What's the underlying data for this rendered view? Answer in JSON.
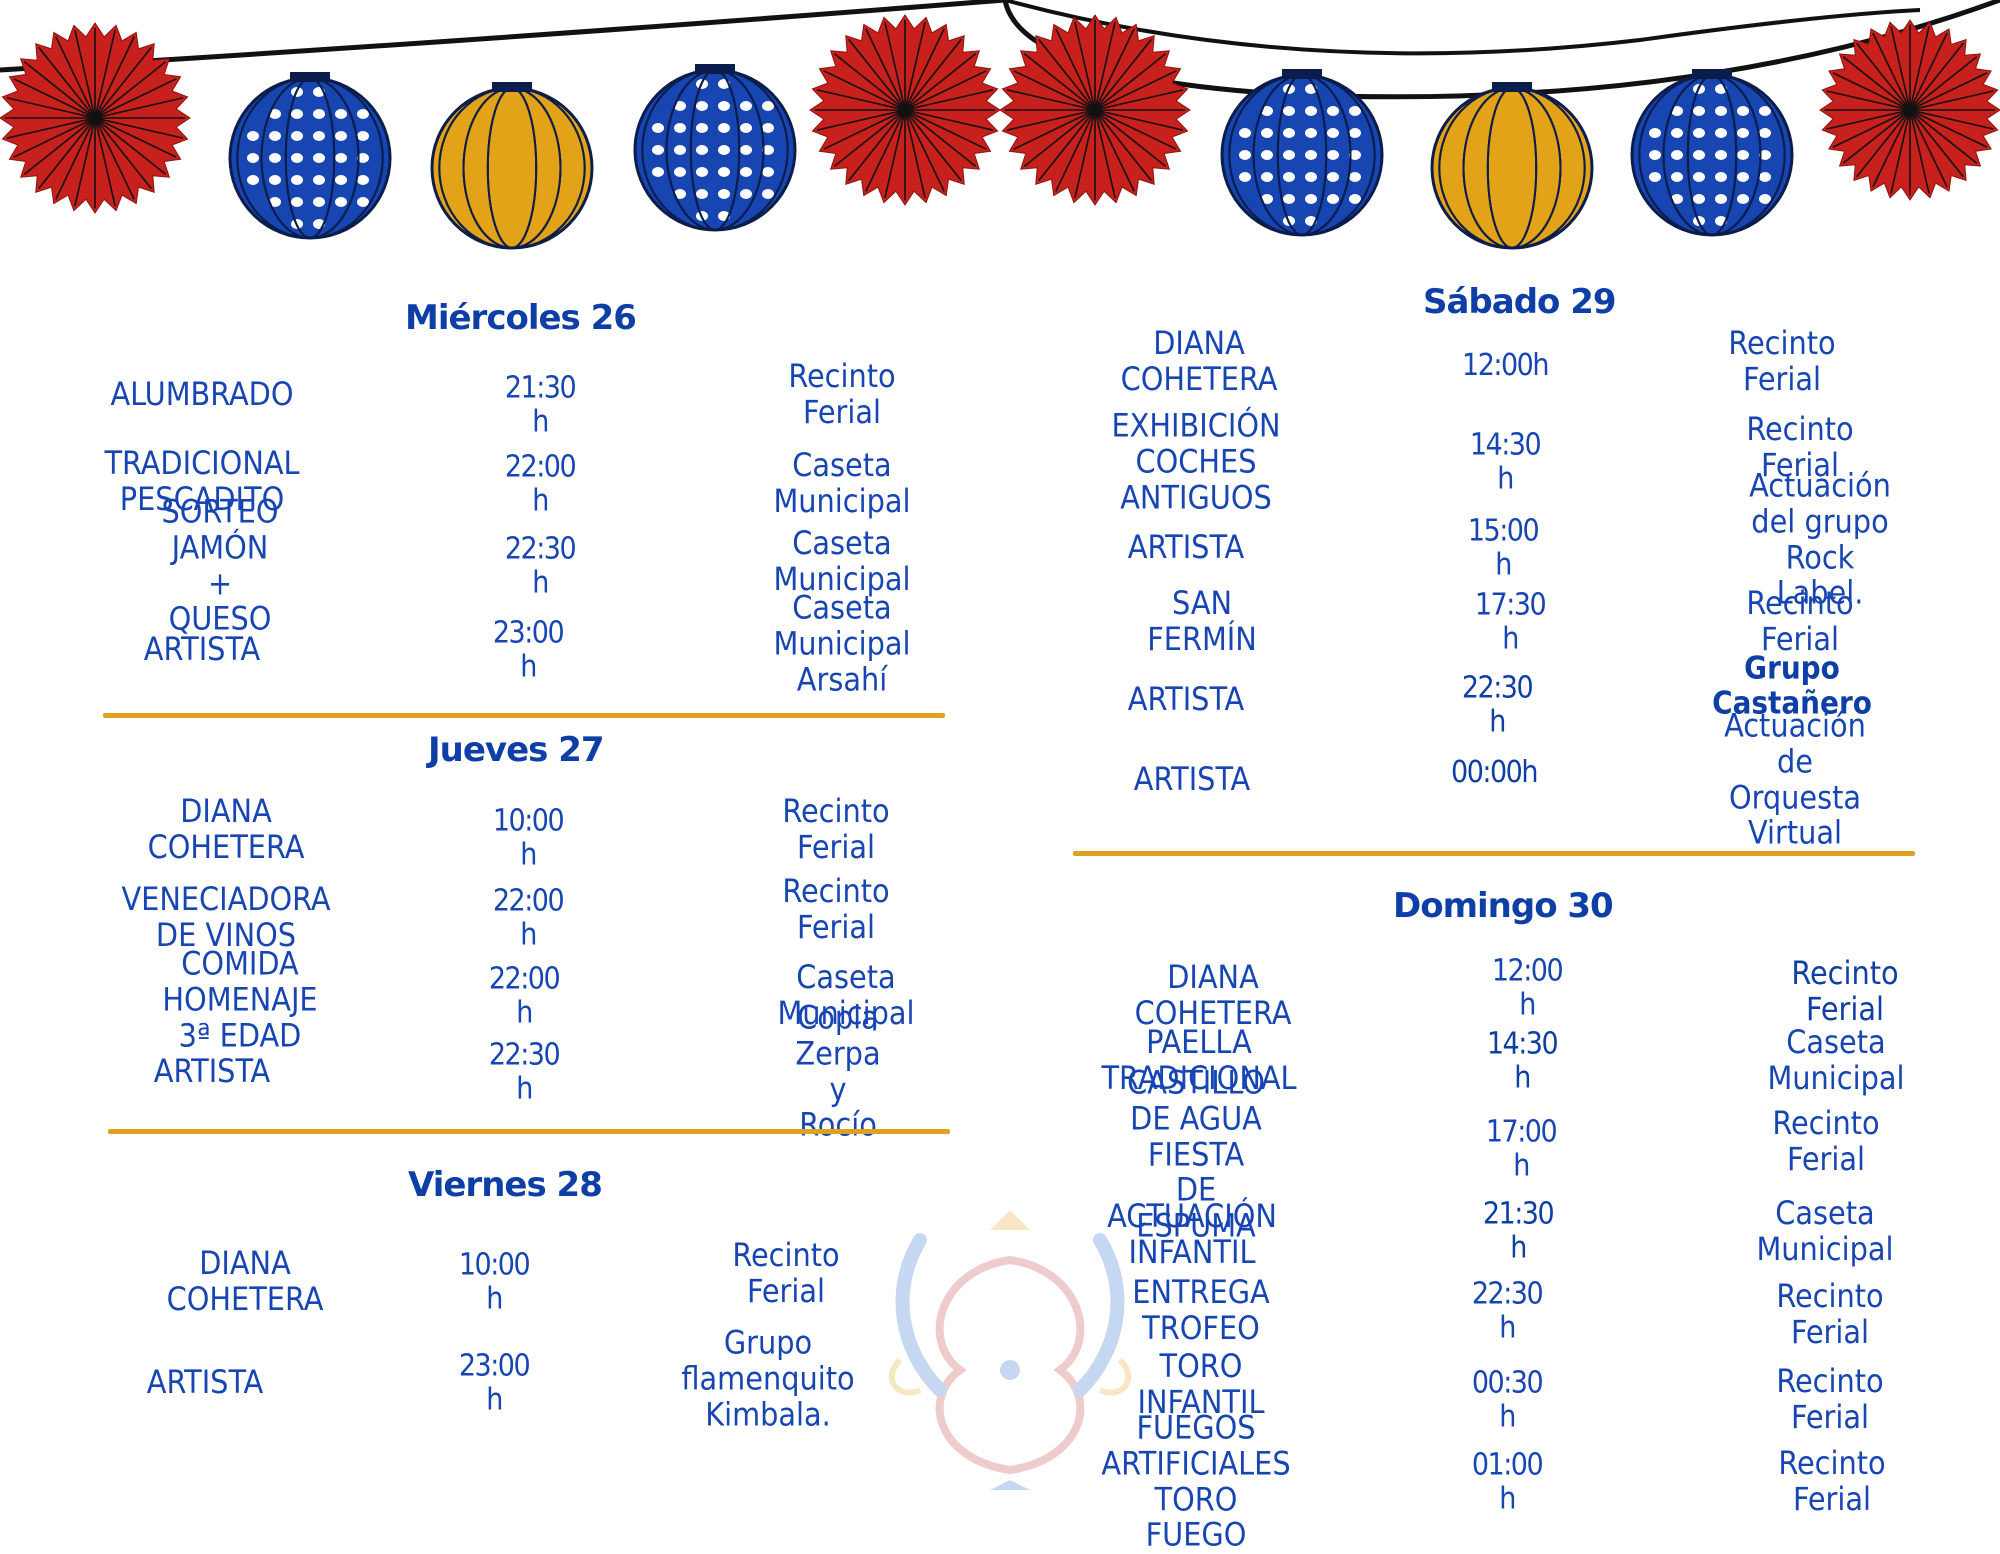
{
  "schedule": {
    "miercoles": {
      "title": "Miércoles 26",
      "events": [
        {
          "activity": "ALUMBRADO",
          "time": "21:30 h",
          "place": "Recinto Ferial"
        },
        {
          "activity": "TRADICIONAL\nPESCADITO",
          "time": "22:00 h",
          "place": "Caseta Municipal"
        },
        {
          "activity": "SORTEO JAMÓN + QUESO",
          "time": "22:30 h",
          "place": "Caseta Municipal"
        },
        {
          "activity": "ARTISTA",
          "time": "23:00 h",
          "place": "Caseta Municipal\nArsahí"
        }
      ]
    },
    "jueves": {
      "title": "Jueves 27",
      "events": [
        {
          "activity": "DIANA COHETERA",
          "time": "10:00 h",
          "place": "Recinto Ferial"
        },
        {
          "activity": "VENECIADORA DE VINOS",
          "time": "22:00 h",
          "place": "Recinto Ferial"
        },
        {
          "activity": "COMIDA HOMENAJE 3ª EDAD",
          "time": "22:00 h",
          "place": "Caseta Municipal"
        },
        {
          "activity": "ARTISTA",
          "time": "22:30 h",
          "place": "Copla Zerpa y Rocío"
        }
      ]
    },
    "viernes": {
      "title": "Viernes  28",
      "events": [
        {
          "activity": "DIANA COHETERA",
          "time": "10:00 h",
          "place": "Recinto Ferial"
        },
        {
          "activity": "ARTISTA",
          "time": "23:00 h",
          "place": "Grupo flamenquito Kimbala."
        }
      ]
    },
    "sabado": {
      "title": "Sábado 29",
      "events": [
        {
          "activity": "DIANA COHETERA",
          "time": "12:00h",
          "place": "Recinto Ferial"
        },
        {
          "activity": "EXHIBICIÓN COCHES\nANTIGUOS",
          "time": "14:30 h",
          "place": "Recinto Ferial"
        },
        {
          "activity": "ARTISTA",
          "time": "15:00 h",
          "place": "Actuación del grupo\nRock Label."
        },
        {
          "activity": "SAN FERMÍN",
          "time": "17:30 h",
          "place": "Recinto Ferial"
        },
        {
          "activity": "ARTISTA",
          "time": "22:30 h",
          "place": "Grupo Castañero"
        },
        {
          "activity": "ARTISTA",
          "time": "00:00h",
          "place": "Actuación de Orquesta\nVirtual"
        }
      ]
    },
    "domingo": {
      "title": "Domingo 30",
      "events": [
        {
          "activity": "DIANA COHETERA",
          "time": "12:00 h",
          "place": "Recinto Ferial"
        },
        {
          "activity": "PAELLA TRADICIONAL",
          "time": "14:30 h",
          "place": "Caseta Municipal"
        },
        {
          "activity": "CASTILLO DE AGUA\nFIESTA DE ESPUMA",
          "time": "17:00 h",
          "place": "Recinto Ferial"
        },
        {
          "activity": "ACTUACIÓN INFANTIL",
          "time": "21:30 h",
          "place": "Caseta Municipal"
        },
        {
          "activity": "ENTREGA TROFEO",
          "time": "22:30 h",
          "place": "Recinto Ferial"
        },
        {
          "activity": "TORO INFANTIL",
          "time": "00:30 h",
          "place": "Recinto Ferial"
        },
        {
          "activity": "FUEGOS ARTIFICIALES\nTORO FUEGO",
          "time": "01:00 h",
          "place": "Recinto Ferial"
        }
      ]
    }
  },
  "colors": {
    "title_blue": "#0d3fa6",
    "text_blue": "#1746b3",
    "separator_gold": "#dea21e",
    "lantern_red": "#c8201c",
    "lantern_blue": "#1745b2",
    "lantern_gold": "#e2a319"
  },
  "decorations": {
    "garland_icon": "paper-lantern-garland-icon",
    "ornament_icon": "floral-ornament-icon"
  }
}
